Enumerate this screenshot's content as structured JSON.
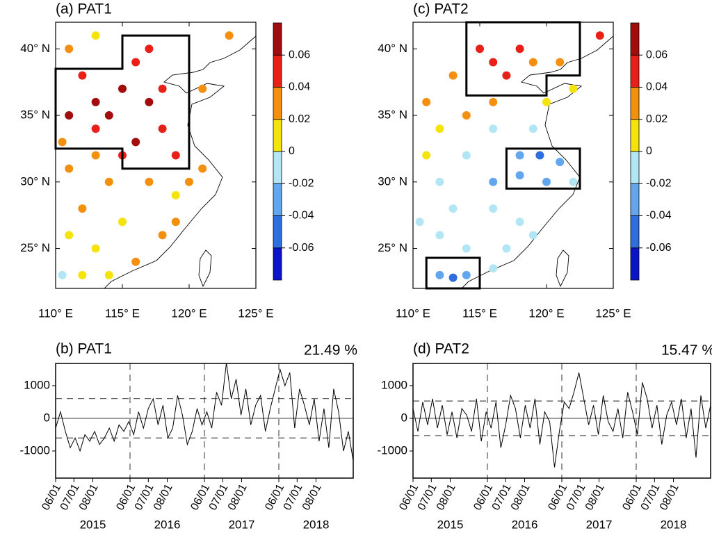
{
  "chart_data": [
    {
      "type": "scatter",
      "title": "(a) PAT1",
      "xlim": [
        110,
        125
      ],
      "ylim": [
        22,
        42
      ],
      "xticks": [
        {
          "value": 110,
          "label": "110° E"
        },
        {
          "value": 115,
          "label": "115° E"
        },
        {
          "value": 120,
          "label": "120° E"
        },
        {
          "value": 125,
          "label": "125° E"
        }
      ],
      "yticks": [
        {
          "value": 25,
          "label": "25° N"
        },
        {
          "value": 30,
          "label": "30° N"
        },
        {
          "value": 35,
          "label": "35° N"
        },
        {
          "value": 40,
          "label": "40° N"
        }
      ],
      "x": [
        112,
        113,
        114,
        115,
        116,
        117,
        118,
        116,
        113,
        111,
        115,
        118,
        119,
        117,
        111,
        113,
        121,
        121,
        123,
        111,
        114,
        117,
        119,
        112,
        115,
        118,
        113,
        111,
        116,
        114,
        112,
        110.5,
        119,
        120,
        110.5,
        113
      ],
      "y": [
        38,
        36,
        35,
        37,
        39,
        36,
        34,
        33,
        34,
        35,
        32,
        37,
        32,
        40,
        40,
        41,
        37,
        31,
        41,
        31,
        30,
        30,
        29,
        28,
        27,
        26,
        25,
        26,
        24,
        23,
        23,
        23,
        27,
        30,
        33,
        32
      ],
      "values": [
        0.05,
        0.07,
        0.07,
        0.06,
        0.05,
        0.07,
        0.05,
        0.06,
        0.05,
        0.06,
        0.05,
        0.05,
        0.05,
        0.05,
        0.03,
        0.01,
        0.03,
        0.03,
        0.03,
        0.03,
        0.03,
        0.03,
        0.01,
        0.03,
        0.01,
        0.03,
        0.01,
        0.01,
        0.03,
        0.01,
        0.005,
        -0.005,
        0.03,
        0.03,
        0.03,
        0.03
      ],
      "regions": [
        [
          [
            110,
            38.5
          ],
          [
            115,
            38.5
          ],
          [
            115,
            41
          ],
          [
            120,
            41
          ],
          [
            120,
            31
          ],
          [
            115,
            31
          ],
          [
            115,
            32.5
          ],
          [
            110,
            32.5
          ]
        ]
      ],
      "colorbar": {
        "ticks": [
          -0.06,
          -0.04,
          -0.02,
          0,
          0.02,
          0.04,
          0.06
        ],
        "colors": [
          "#0a14c8",
          "#2e6ee0",
          "#62a6ee",
          "#b3e6f4",
          "#f5e40c",
          "#f5900f",
          "#e82018",
          "#a30c0c"
        ]
      }
    },
    {
      "type": "line",
      "title": "(b) PAT1",
      "annotation": "21.49 %",
      "xlim": [
        0,
        488
      ],
      "ylim": [
        -1830,
        1680
      ],
      "yticks": [
        -1000,
        0,
        1000
      ],
      "xticks": [
        {
          "value": 0,
          "label": "06/01"
        },
        {
          "value": 30,
          "label": "07/01"
        },
        {
          "value": 61,
          "label": "08/01"
        },
        {
          "value": 122,
          "label": "06/01"
        },
        {
          "value": 152,
          "label": "07/01"
        },
        {
          "value": 183,
          "label": "08/01"
        },
        {
          "value": 244,
          "label": "06/01"
        },
        {
          "value": 274,
          "label": "07/01"
        },
        {
          "value": 305,
          "label": "08/01"
        },
        {
          "value": 366,
          "label": "06/01"
        },
        {
          "value": 396,
          "label": "07/01"
        },
        {
          "value": 427,
          "label": "08/01"
        }
      ],
      "years": [
        "2015",
        "2016",
        "2017",
        "2018"
      ],
      "vlines": [
        122,
        244,
        366
      ],
      "hlines": [
        600,
        -600
      ],
      "zero_line": true,
      "x": [
        0,
        8,
        16,
        24,
        32,
        40,
        48,
        56,
        64,
        72,
        80,
        88,
        96,
        104,
        112,
        120,
        128,
        136,
        144,
        152,
        160,
        168,
        176,
        184,
        192,
        200,
        208,
        216,
        224,
        232,
        240,
        248,
        256,
        264,
        272,
        280,
        288,
        296,
        304,
        312,
        320,
        328,
        336,
        344,
        352,
        360,
        368,
        376,
        384,
        392,
        400,
        408,
        416,
        424,
        432,
        440,
        448,
        456,
        464,
        472,
        480,
        488
      ],
      "values": [
        -300,
        200,
        -400,
        -900,
        -600,
        -1000,
        -500,
        -700,
        -400,
        -800,
        -600,
        -300,
        -700,
        -200,
        -400,
        -100,
        -500,
        200,
        -300,
        300,
        600,
        -200,
        400,
        -600,
        -300,
        700,
        100,
        -800,
        -400,
        300,
        -200,
        200,
        -300,
        800,
        400,
        1700,
        600,
        1200,
        100,
        900,
        -200,
        400,
        700,
        -400,
        300,
        900,
        1500,
        1000,
        1400,
        -300,
        900,
        400,
        -200,
        600,
        -700,
        300,
        -900,
        900,
        200,
        -1000,
        -400,
        -1300
      ]
    },
    {
      "type": "scatter",
      "title": "(c) PAT2",
      "xlim": [
        110,
        125
      ],
      "ylim": [
        22,
        42
      ],
      "xticks": [
        {
          "value": 110,
          "label": "110° E"
        },
        {
          "value": 115,
          "label": "115° E"
        },
        {
          "value": 120,
          "label": "120° E"
        },
        {
          "value": 125,
          "label": "125° E"
        }
      ],
      "yticks": [
        {
          "value": 25,
          "label": "25° N"
        },
        {
          "value": 30,
          "label": "30° N"
        },
        {
          "value": 35,
          "label": "35° N"
        },
        {
          "value": 40,
          "label": "40° N"
        }
      ],
      "x": [
        115,
        116,
        118,
        119,
        117,
        121,
        124,
        122,
        113,
        111,
        114,
        116,
        120,
        112,
        116,
        119,
        114,
        118,
        119.5,
        121,
        118,
        120,
        116,
        111,
        112,
        113,
        116,
        118,
        110.5,
        112,
        114,
        117,
        119,
        112,
        113,
        114,
        116,
        122
      ],
      "y": [
        40,
        39,
        40,
        39,
        38,
        39,
        41,
        37,
        38,
        36,
        35,
        36,
        36,
        34,
        34,
        34,
        32,
        32,
        32,
        31.5,
        30.5,
        30,
        30,
        32,
        30,
        28,
        28,
        27,
        27,
        26,
        25,
        25,
        26,
        23,
        22.8,
        23,
        23.5,
        30
      ],
      "values": [
        0.05,
        0.05,
        0.05,
        0.03,
        0.05,
        0.03,
        0.05,
        0.01,
        0.03,
        0.03,
        0.03,
        0.03,
        0.01,
        0.01,
        -0.01,
        -0.01,
        -0.01,
        -0.03,
        -0.05,
        -0.03,
        -0.03,
        -0.03,
        -0.03,
        0.01,
        -0.01,
        -0.01,
        -0.01,
        -0.01,
        -0.01,
        -0.01,
        -0.01,
        -0.01,
        -0.01,
        -0.03,
        -0.05,
        -0.03,
        -0.01,
        -0.01
      ],
      "regions": [
        [
          [
            114,
            42
          ],
          [
            122.5,
            42
          ],
          [
            122.5,
            38
          ],
          [
            120,
            38
          ],
          [
            120,
            36.5
          ],
          [
            114,
            36.5
          ]
        ],
        [
          [
            117,
            32.5
          ],
          [
            122.5,
            32.5
          ],
          [
            122.5,
            29.5
          ],
          [
            117,
            29.5
          ]
        ],
        [
          [
            111,
            24.3
          ],
          [
            115,
            24.3
          ],
          [
            115,
            22
          ],
          [
            111,
            22
          ]
        ]
      ],
      "colorbar": {
        "ticks": [
          -0.06,
          -0.04,
          -0.02,
          0,
          0.02,
          0.04,
          0.06
        ],
        "colors": [
          "#0a14c8",
          "#2e6ee0",
          "#62a6ee",
          "#b3e6f4",
          "#f5e40c",
          "#f5900f",
          "#e82018",
          "#a30c0c"
        ]
      }
    },
    {
      "type": "line",
      "title": "(d) PAT2",
      "annotation": "15.47 %",
      "xlim": [
        0,
        488
      ],
      "ylim": [
        -1830,
        1680
      ],
      "yticks": [
        -1000,
        0,
        1000
      ],
      "xticks": [
        {
          "value": 0,
          "label": "06/01"
        },
        {
          "value": 30,
          "label": "07/01"
        },
        {
          "value": 61,
          "label": "08/01"
        },
        {
          "value": 122,
          "label": "06/01"
        },
        {
          "value": 152,
          "label": "07/01"
        },
        {
          "value": 183,
          "label": "08/01"
        },
        {
          "value": 244,
          "label": "06/01"
        },
        {
          "value": 274,
          "label": "07/01"
        },
        {
          "value": 305,
          "label": "08/01"
        },
        {
          "value": 366,
          "label": "06/01"
        },
        {
          "value": 396,
          "label": "07/01"
        },
        {
          "value": 427,
          "label": "08/01"
        }
      ],
      "years": [
        "2015",
        "2016",
        "2017",
        "2018"
      ],
      "vlines": [
        122,
        244,
        366
      ],
      "hlines": [
        530,
        -530
      ],
      "zero_line": true,
      "x": [
        0,
        8,
        16,
        24,
        32,
        40,
        48,
        56,
        64,
        72,
        80,
        88,
        96,
        104,
        112,
        120,
        128,
        136,
        144,
        152,
        160,
        168,
        176,
        184,
        192,
        200,
        208,
        216,
        224,
        232,
        240,
        248,
        256,
        264,
        272,
        280,
        288,
        296,
        304,
        312,
        320,
        328,
        336,
        344,
        352,
        360,
        368,
        376,
        384,
        392,
        400,
        408,
        416,
        424,
        432,
        440,
        448,
        456,
        464,
        472,
        480,
        488
      ],
      "values": [
        300,
        -400,
        500,
        -200,
        600,
        -300,
        400,
        -500,
        200,
        -600,
        300,
        100,
        -400,
        600,
        -700,
        200,
        -300,
        500,
        -900,
        -200,
        700,
        300,
        -600,
        400,
        -300,
        600,
        -800,
        200,
        -100,
        -1500,
        -400,
        500,
        300,
        800,
        1400,
        600,
        -200,
        400,
        -500,
        700,
        -100,
        -400,
        300,
        -600,
        800,
        200,
        -500,
        1100,
        600,
        -300,
        400,
        -800,
        100,
        500,
        -200,
        600,
        -600,
        300,
        -1200,
        700,
        -300,
        400
      ]
    }
  ]
}
